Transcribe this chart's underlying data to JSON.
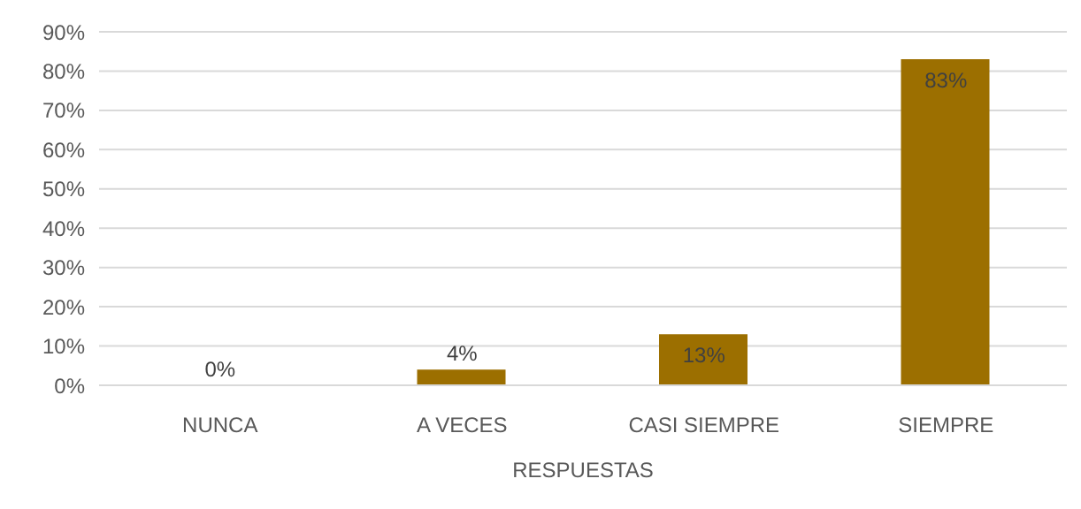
{
  "chart_data": {
    "type": "bar",
    "xlabel": "RESPUESTAS",
    "categories": [
      "NUNCA",
      "A VECES",
      "CASI SIEMPRE",
      "SIEMPRE"
    ],
    "values": [
      0,
      4,
      13,
      83
    ],
    "color": "#9c6f00",
    "value_labels": [
      "0%",
      "4%",
      "13%",
      "83%"
    ],
    "ylim": [
      0,
      90
    ],
    "yticks": [
      {
        "value": 0,
        "label": "0%"
      },
      {
        "value": 10,
        "label": "10%"
      },
      {
        "value": 20,
        "label": "20%"
      },
      {
        "value": 30,
        "label": "30%"
      },
      {
        "value": 40,
        "label": "40%"
      },
      {
        "value": 50,
        "label": "50%"
      },
      {
        "value": 60,
        "label": "60%"
      },
      {
        "value": 70,
        "label": "70%"
      },
      {
        "value": 80,
        "label": "80%"
      },
      {
        "value": 90,
        "label": "90%"
      }
    ],
    "grid": "y"
  }
}
